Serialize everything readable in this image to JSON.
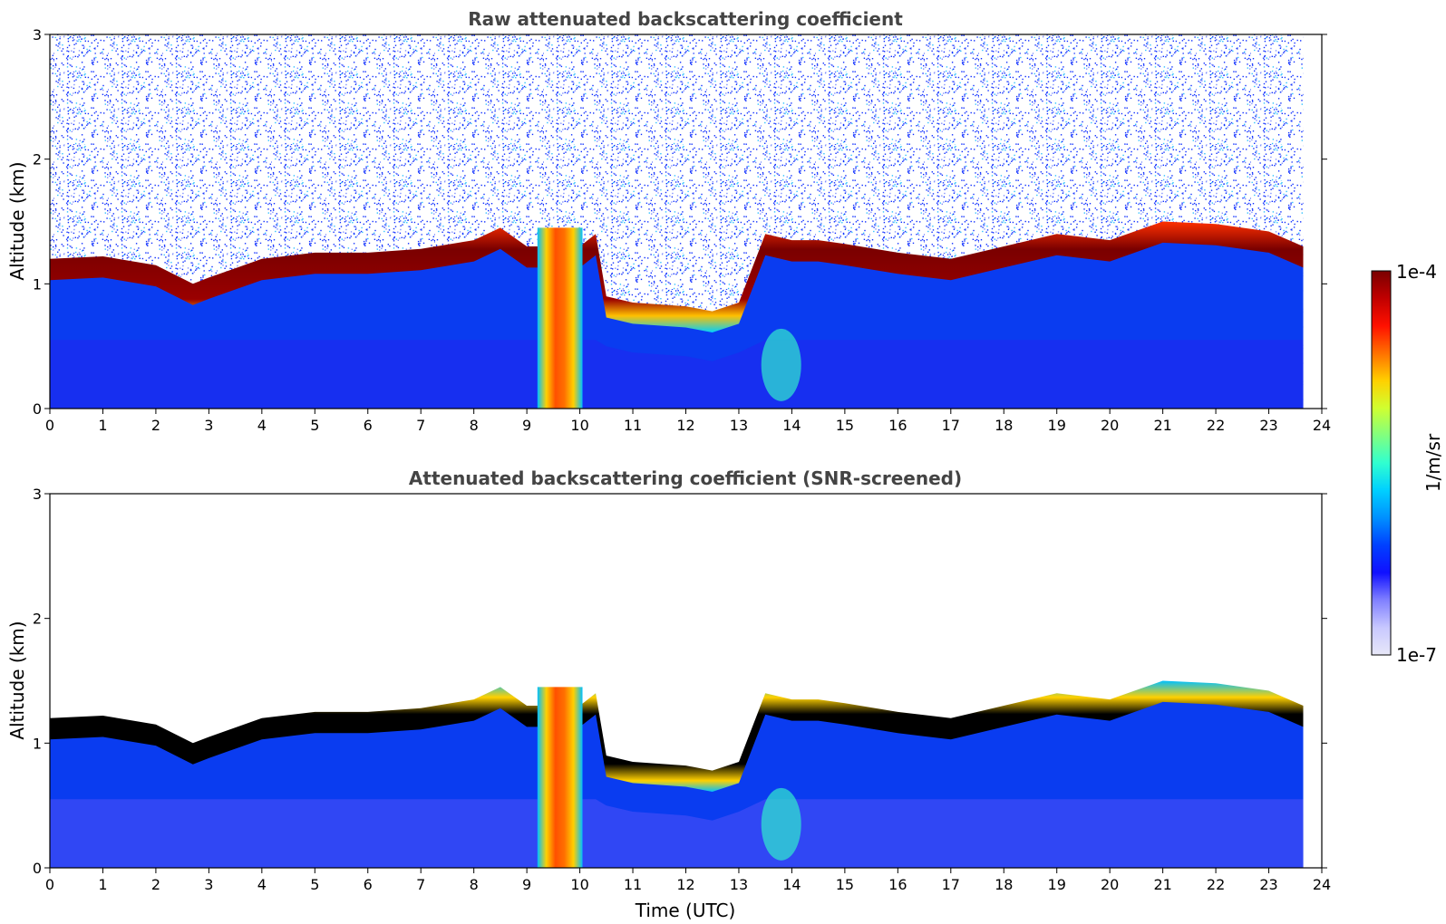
{
  "chart_data": [
    {
      "type": "heatmap",
      "title": "Raw attenuated backscattering coefficient",
      "xlabel": "",
      "ylabel": "Altitude (km)",
      "xlim": [
        0,
        24
      ],
      "ylim": [
        0,
        3
      ],
      "x_ticks": [
        0,
        1,
        2,
        3,
        4,
        5,
        6,
        7,
        8,
        9,
        10,
        11,
        12,
        13,
        14,
        15,
        16,
        17,
        18,
        19,
        20,
        21,
        22,
        23,
        24
      ],
      "y_ticks": [
        0,
        1,
        2,
        3
      ],
      "data_end_time": 23.65,
      "layer_top_km": [
        [
          0,
          1.2
        ],
        [
          1,
          1.22
        ],
        [
          2,
          1.15
        ],
        [
          2.7,
          1.0
        ],
        [
          3,
          1.05
        ],
        [
          4,
          1.2
        ],
        [
          5,
          1.25
        ],
        [
          6,
          1.25
        ],
        [
          7,
          1.28
        ],
        [
          8,
          1.35
        ],
        [
          8.5,
          1.45
        ],
        [
          9,
          1.3
        ],
        [
          9.5,
          1.3
        ],
        [
          10,
          1.3
        ],
        [
          10.3,
          1.4
        ],
        [
          10.5,
          0.9
        ],
        [
          11,
          0.85
        ],
        [
          12,
          0.82
        ],
        [
          12.5,
          0.78
        ],
        [
          13,
          0.85
        ],
        [
          13.5,
          1.4
        ],
        [
          14,
          1.35
        ],
        [
          14.5,
          1.35
        ],
        [
          15,
          1.32
        ],
        [
          16,
          1.25
        ],
        [
          17,
          1.2
        ],
        [
          18,
          1.3
        ],
        [
          19,
          1.4
        ],
        [
          20,
          1.35
        ],
        [
          21,
          1.5
        ],
        [
          22,
          1.48
        ],
        [
          23,
          1.42
        ],
        [
          23.65,
          1.3
        ]
      ],
      "colorbar": {
        "min": "1e-7",
        "max": "1e-4",
        "label": "1/m/sr",
        "scale": "log"
      }
    },
    {
      "type": "heatmap",
      "title": "Attenuated backscattering coefficient (SNR-screened)",
      "xlabel": "Time (UTC)",
      "ylabel": "Altitude (km)",
      "xlim": [
        0,
        24
      ],
      "ylim": [
        0,
        3
      ],
      "x_ticks": [
        0,
        1,
        2,
        3,
        4,
        5,
        6,
        7,
        8,
        9,
        10,
        11,
        12,
        13,
        14,
        15,
        16,
        17,
        18,
        19,
        20,
        21,
        22,
        23,
        24
      ],
      "y_ticks": [
        0,
        1,
        2,
        3
      ],
      "data_end_time": 23.65,
      "colorbar": {
        "min": "1e-7",
        "max": "1e-4",
        "label": "1/m/sr",
        "scale": "log"
      }
    }
  ],
  "colors": {
    "cloud_core": "#7a0000",
    "cloud_saturated": "#000000",
    "boundary_layer": "#0a3cf0",
    "colormap": [
      "#e8e8f8",
      "#c8c8ff",
      "#8080ff",
      "#1010ff",
      "#0040ff",
      "#0090ff",
      "#00d0ff",
      "#30ffd0",
      "#80ff80",
      "#d0ff30",
      "#ffd000",
      "#ff7000",
      "#ff1000",
      "#c00000",
      "#7a0000"
    ]
  }
}
